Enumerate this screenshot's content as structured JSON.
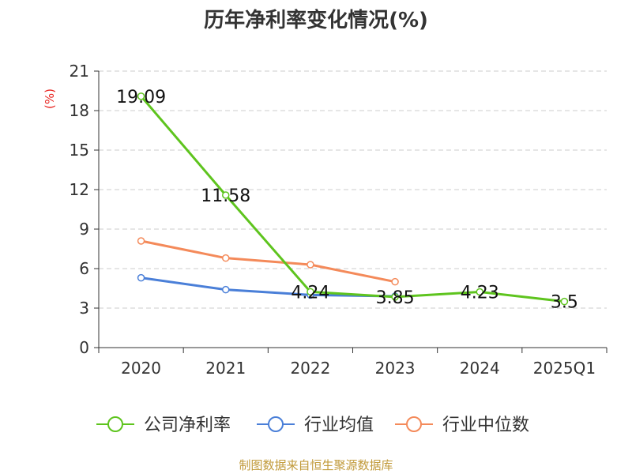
{
  "chart_data": {
    "type": "line",
    "title": "历年净利率变化情况(%)",
    "ylabel": "(%)",
    "xlabel": "",
    "categories": [
      "2020",
      "2021",
      "2022",
      "2023",
      "2024",
      "2025Q1"
    ],
    "ylim": [
      0,
      21
    ],
    "yticks": [
      0,
      3,
      6,
      9,
      12,
      15,
      18,
      21
    ],
    "grid": true,
    "legend_position": "bottom",
    "series": [
      {
        "name": "公司净利率",
        "color": "#5ec41e",
        "values": [
          19.09,
          11.58,
          4.24,
          3.85,
          4.23,
          3.5
        ],
        "labels": [
          "19.09",
          "11.58",
          "4.24",
          "3.85",
          "4.23",
          "3.5"
        ]
      },
      {
        "name": "行业均值",
        "color": "#4a7fd8",
        "values": [
          5.3,
          4.4,
          4.0,
          3.9,
          null,
          null
        ]
      },
      {
        "name": "行业中位数",
        "color": "#f48a5a",
        "values": [
          8.1,
          6.8,
          6.3,
          5.0,
          null,
          null
        ]
      }
    ],
    "source": "制图数据来自恒生聚源数据库"
  }
}
